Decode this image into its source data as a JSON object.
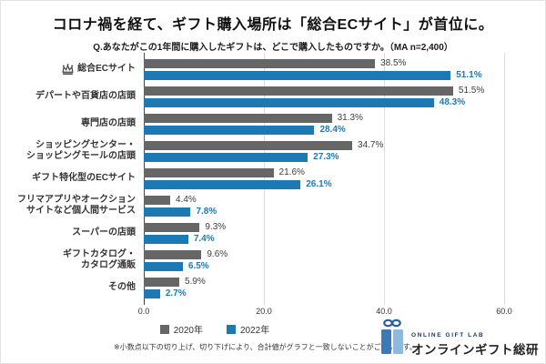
{
  "title": "コロナ禍を経て、ギフト購入場所は「総合ECサイト」が首位に。",
  "subtitle": "Q.あなたがこの1年間に購入したギフトは、どこで購入したものですか。（MA n=2,400）",
  "chart_data": {
    "type": "bar",
    "orientation": "horizontal",
    "xlim": [
      0,
      60
    ],
    "xticks": [
      "0.0",
      "20.0",
      "40.0",
      "60.0"
    ],
    "grid": true,
    "legend_position": "bottom",
    "crown_index": 0,
    "categories": [
      "総合ECサイト",
      "デパートや百貨店の店頭",
      "専門店の店頭",
      "ショッピングセンター・\nショッピングモールの店頭",
      "ギフト特化型のECサイト",
      "フリマアプリやオークション\nサイトなど個人間サービス",
      "スーパーの店頭",
      "ギフトカタログ・\nカタログ通販",
      "その他"
    ],
    "series": [
      {
        "name": "2020年",
        "color": "#666666",
        "values": [
          38.5,
          51.5,
          31.3,
          34.7,
          21.6,
          4.4,
          9.3,
          9.6,
          5.9
        ]
      },
      {
        "name": "2022年",
        "color": "#1d79b4",
        "values": [
          51.1,
          48.3,
          28.4,
          27.3,
          26.1,
          7.8,
          7.4,
          6.5,
          2.7
        ]
      }
    ],
    "value_suffix": "%"
  },
  "footnote": "※小数点以下の切り上げ、切り下げにより、合計値がグラフと一致しないことがございます。",
  "logo": {
    "line1": "ONLINE GIFT LAB",
    "line2": "オンラインギフト総研"
  },
  "colors": {
    "bar_2020": "#666666",
    "bar_2022": "#1d79b4",
    "logo_box_left": "#3b79b8",
    "logo_box_right": "#8fbadd",
    "logo_ribbon": "#2a5f9e"
  }
}
